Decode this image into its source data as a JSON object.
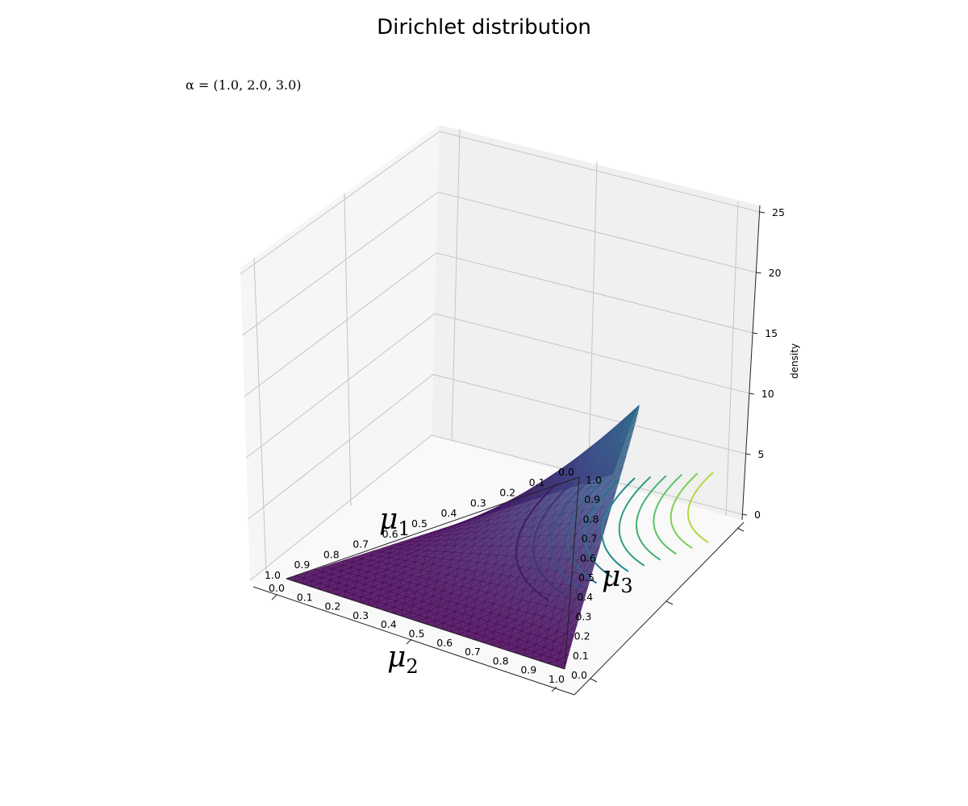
{
  "figure": {
    "title": "Dirichlet distribution",
    "params_label": "α = (1.0, 2.0, 3.0)",
    "zlabel": "density",
    "mu1_label": "μ",
    "mu1_sub": "1",
    "mu2_label": "μ",
    "mu2_sub": "2",
    "mu3_label": "μ",
    "mu3_sub": "3"
  },
  "chart_data": {
    "type": "surface",
    "title": "Dirichlet distribution",
    "subtitle": "α = (1.0, 2.0, 3.0)",
    "alpha": [
      1.0,
      2.0,
      3.0
    ],
    "zlabel": "density",
    "zlim": [
      0,
      25
    ],
    "z_ticks": [
      "0",
      "5",
      "10",
      "15",
      "20",
      "25"
    ],
    "mu1_ticks": [
      "0.0",
      "0.1",
      "0.2",
      "0.3",
      "0.4",
      "0.5",
      "0.6",
      "0.7",
      "0.8",
      "0.9",
      "1.0"
    ],
    "mu2_ticks": [
      "0.0",
      "0.1",
      "0.2",
      "0.3",
      "0.4",
      "0.5",
      "0.6",
      "0.7",
      "0.8",
      "0.9",
      "1.0"
    ],
    "mu3_ticks": [
      "0.0",
      "0.1",
      "0.2",
      "0.3",
      "0.4",
      "0.5",
      "0.6",
      "0.7",
      "0.8",
      "0.9",
      "1.0"
    ],
    "colormap": [
      "#440154",
      "#3b528b",
      "#21918c",
      "#5ec962",
      "#fde725"
    ],
    "grid": true
  }
}
